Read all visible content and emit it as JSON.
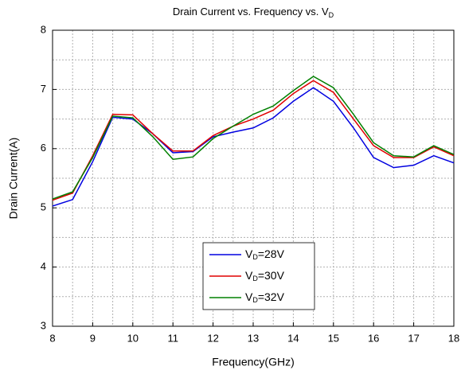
{
  "chart_data": {
    "type": "line",
    "title": "Drain Current vs. Frequency vs. VD",
    "xlabel": "Frequency(GHz)",
    "ylabel": "Drain Current(A)",
    "x": [
      8,
      8.5,
      9,
      9.5,
      10,
      10.5,
      11,
      11.5,
      12,
      12.5,
      13,
      13.5,
      14,
      14.5,
      15,
      15.5,
      16,
      16.5,
      17,
      17.5,
      18
    ],
    "series": [
      {
        "name": "VD=28V",
        "color": "#0000e0",
        "values": [
          5.03,
          5.14,
          5.78,
          6.53,
          6.5,
          6.25,
          5.93,
          5.95,
          6.2,
          6.28,
          6.35,
          6.52,
          6.8,
          7.03,
          6.8,
          6.35,
          5.85,
          5.68,
          5.72,
          5.88,
          5.76
        ]
      },
      {
        "name": "VD=30V",
        "color": "#e00000",
        "values": [
          5.13,
          5.25,
          5.88,
          6.58,
          6.57,
          6.25,
          5.96,
          5.96,
          6.22,
          6.38,
          6.5,
          6.65,
          6.93,
          7.15,
          6.95,
          6.5,
          6.05,
          5.85,
          5.85,
          6.03,
          5.88
        ]
      },
      {
        "name": "VD=32V",
        "color": "#008000",
        "values": [
          5.15,
          5.27,
          5.85,
          6.55,
          6.52,
          6.2,
          5.82,
          5.86,
          6.17,
          6.38,
          6.58,
          6.72,
          6.98,
          7.22,
          7.03,
          6.58,
          6.1,
          5.88,
          5.86,
          6.05,
          5.9
        ]
      }
    ],
    "xlim": [
      8,
      18
    ],
    "xticks": [
      8,
      9,
      10,
      11,
      12,
      13,
      14,
      15,
      16,
      17,
      18
    ],
    "ylim": [
      3,
      8
    ],
    "yticks": [
      3,
      4,
      5,
      6,
      7,
      8
    ],
    "xminor": [
      8.5,
      9.5,
      10.5,
      11.5,
      12.5,
      13.5,
      14.5,
      15.5,
      16.5,
      17.5
    ],
    "yminor": [
      3.5,
      4.5,
      5.5,
      6.5,
      7.5
    ],
    "grid": true,
    "legend": "lower center"
  }
}
